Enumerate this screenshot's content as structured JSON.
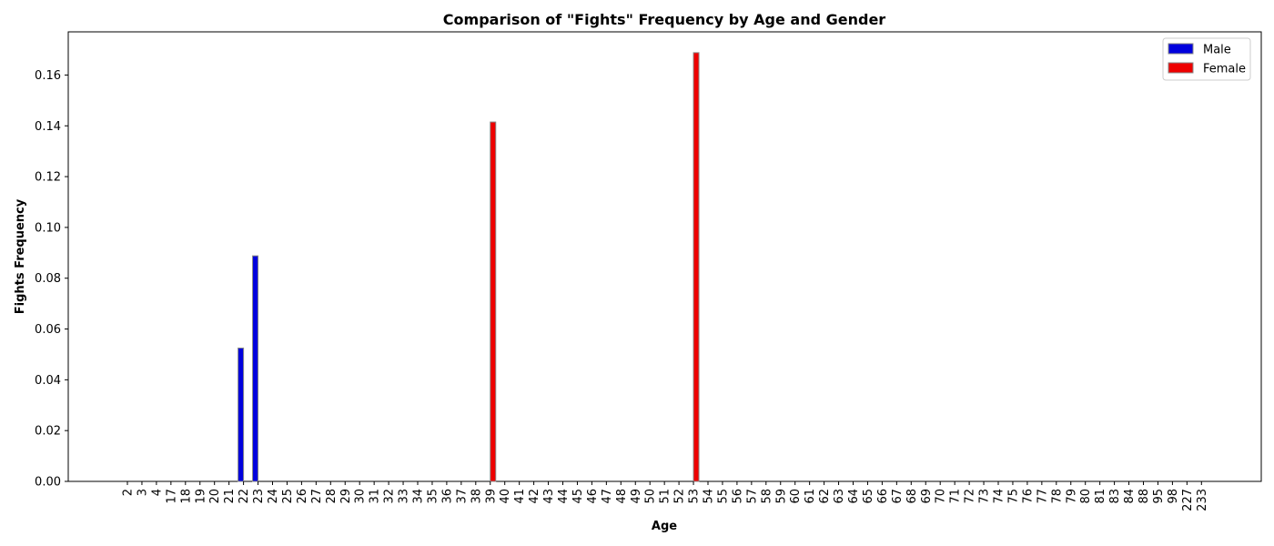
{
  "chart_data": {
    "type": "bar",
    "title": "Comparison of \"Fights\" Frequency by Age and Gender",
    "xlabel": "Age",
    "ylabel": "Fights Frequency",
    "ylim": [
      0,
      0.177
    ],
    "yticks": [
      "0.00",
      "0.02",
      "0.04",
      "0.06",
      "0.08",
      "0.10",
      "0.12",
      "0.14",
      "0.16"
    ],
    "categories": [
      "2",
      "3",
      "4",
      "17",
      "18",
      "19",
      "20",
      "21",
      "22",
      "23",
      "24",
      "25",
      "26",
      "27",
      "28",
      "29",
      "30",
      "31",
      "32",
      "33",
      "34",
      "35",
      "36",
      "37",
      "38",
      "39",
      "40",
      "41",
      "42",
      "43",
      "44",
      "45",
      "46",
      "47",
      "48",
      "49",
      "50",
      "51",
      "52",
      "53",
      "54",
      "55",
      "56",
      "57",
      "58",
      "59",
      "60",
      "61",
      "62",
      "63",
      "64",
      "65",
      "66",
      "67",
      "68",
      "69",
      "70",
      "71",
      "72",
      "73",
      "74",
      "75",
      "76",
      "77",
      "78",
      "79",
      "80",
      "81",
      "83",
      "84",
      "88",
      "95",
      "98",
      "227",
      "233"
    ],
    "series": [
      {
        "name": "Male",
        "color": "#0000dd",
        "values": [
          0,
          0,
          0,
          0,
          0,
          0,
          0,
          0,
          0.0525,
          0.0888,
          0,
          0,
          0,
          0,
          0,
          0,
          0,
          0,
          0,
          0,
          0,
          0,
          0,
          0,
          0,
          0,
          0,
          0,
          0,
          0,
          0,
          0,
          0,
          0,
          0,
          0,
          0,
          0,
          0,
          0,
          0,
          0,
          0,
          0,
          0,
          0,
          0,
          0,
          0,
          0,
          0,
          0,
          0,
          0,
          0,
          0,
          0,
          0,
          0,
          0,
          0,
          0,
          0,
          0,
          0,
          0,
          0,
          0,
          0,
          0,
          0,
          0,
          0,
          0,
          0
        ]
      },
      {
        "name": "Female",
        "color": "#ee0000",
        "values": [
          0,
          0,
          0,
          0,
          0,
          0,
          0,
          0,
          0,
          0,
          0,
          0,
          0,
          0,
          0,
          0,
          0,
          0,
          0,
          0,
          0,
          0,
          0,
          0,
          0,
          0.1415,
          0,
          0,
          0,
          0,
          0,
          0,
          0,
          0,
          0,
          0,
          0,
          0,
          0,
          0.1688,
          0,
          0,
          0,
          0,
          0,
          0,
          0,
          0,
          0,
          0,
          0,
          0,
          0,
          0,
          0,
          0,
          0,
          0,
          0,
          0,
          0,
          0,
          0,
          0,
          0,
          0,
          0,
          0,
          0,
          0,
          0,
          0,
          0,
          0,
          0
        ]
      }
    ],
    "legend_position": "top-right",
    "grid": false
  }
}
